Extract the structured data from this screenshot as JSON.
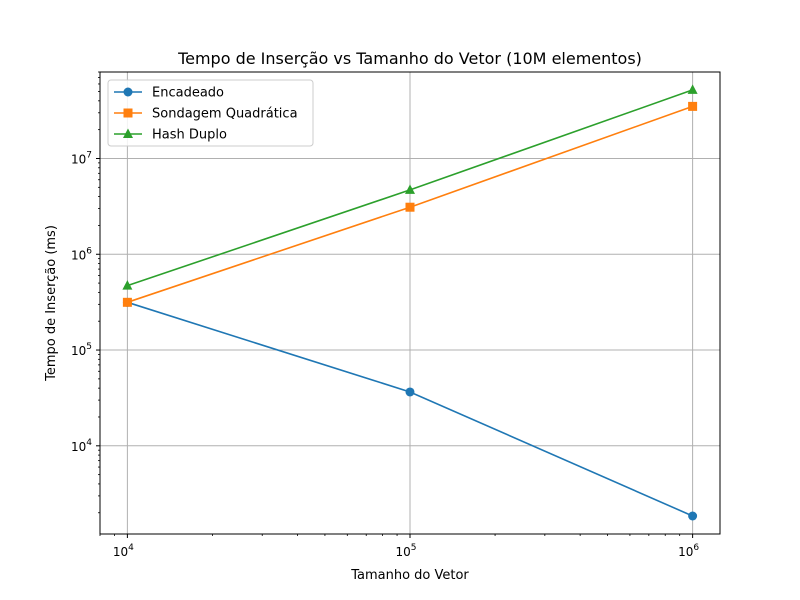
{
  "chart_data": {
    "type": "line",
    "title": "Tempo de Inserção vs Tamanho do Vetor (10M elementos)",
    "xlabel": "Tamanho do Vetor",
    "ylabel": "Tempo de Inserção (ms)",
    "xscale": "log",
    "yscale": "log",
    "xlim": [
      8000,
      1250000
    ],
    "ylim": [
      1200,
      80000000
    ],
    "x": [
      10000,
      100000,
      1000000
    ],
    "x_ticks": [
      {
        "value": 10000,
        "base": "10",
        "exp": "4"
      },
      {
        "value": 100000,
        "base": "10",
        "exp": "5"
      },
      {
        "value": 1000000,
        "base": "10",
        "exp": "6"
      }
    ],
    "y_ticks": [
      {
        "value": 10000,
        "base": "10",
        "exp": "4"
      },
      {
        "value": 100000,
        "base": "10",
        "exp": "5"
      },
      {
        "value": 1000000,
        "base": "10",
        "exp": "6"
      },
      {
        "value": 10000000,
        "base": "10",
        "exp": "7"
      }
    ],
    "grid": true,
    "legend_position": "top-left",
    "series": [
      {
        "name": "Encadeado",
        "values": [
          315000,
          36500,
          1850
        ],
        "color": "#1f77b4",
        "marker": "circle"
      },
      {
        "name": "Sondagem Quadrática",
        "values": [
          315000,
          3100000,
          35000000
        ],
        "color": "#ff7f0e",
        "marker": "square"
      },
      {
        "name": "Hash Duplo",
        "values": [
          470000,
          4700000,
          52000000
        ],
        "color": "#2ca02c",
        "marker": "triangle"
      }
    ]
  }
}
